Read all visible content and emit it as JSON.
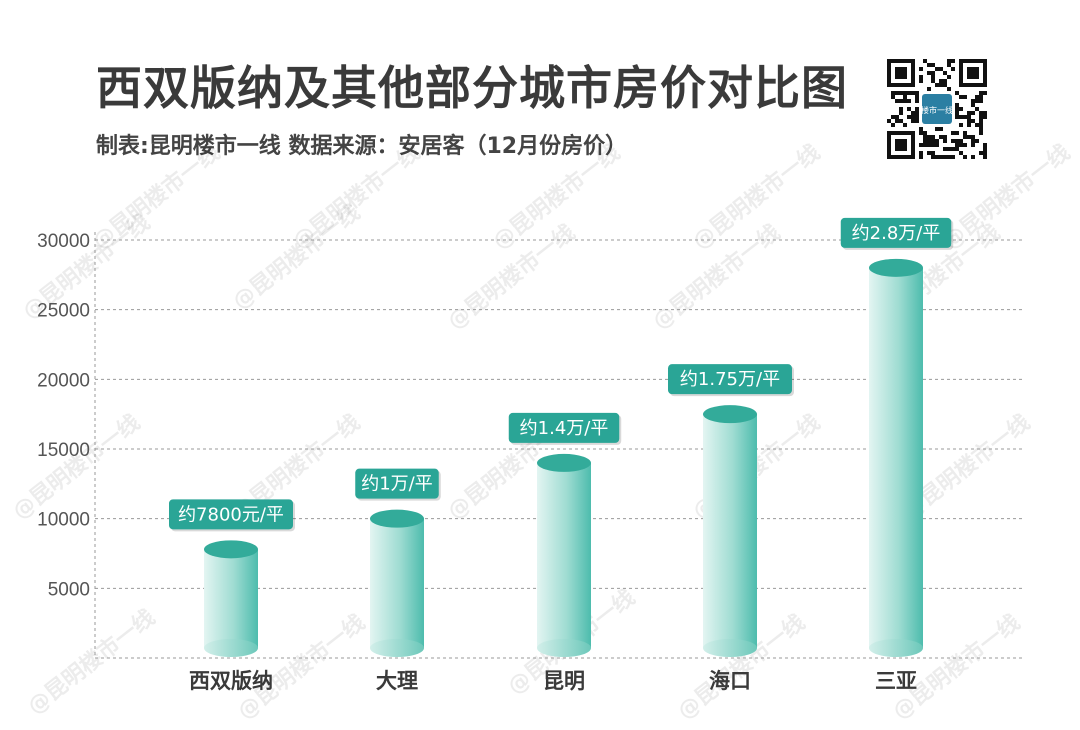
{
  "header": {
    "title": "西双版纳及其他部分城市房价对比图",
    "subtitle": "制表:昆明楼市一线   数据来源：安居客（12月份房价）",
    "qr_label": "楼市一线"
  },
  "watermark_text": "@昆明楼市一线",
  "colors": {
    "bar_light": "#c9ece6",
    "bar_mid": "#7dd0c3",
    "bar_dark": "#3bb4a3",
    "bar_top": "#33ab9a",
    "badge": "#2aa596",
    "grid": "#999999"
  },
  "chart_data": {
    "type": "bar",
    "categories": [
      "西双版纳",
      "大理",
      "昆明",
      "海口",
      "三亚"
    ],
    "values": [
      7800,
      10000,
      14000,
      17500,
      28000
    ],
    "data_labels": [
      "约7800元/平",
      "约1万/平",
      "约1.4万/平",
      "约1.75万/平",
      "约2.8万/平"
    ],
    "yticks": [
      5000,
      10000,
      15000,
      20000,
      25000,
      30000
    ],
    "ylim": [
      0,
      30000
    ],
    "grid": true,
    "legend": "none"
  }
}
